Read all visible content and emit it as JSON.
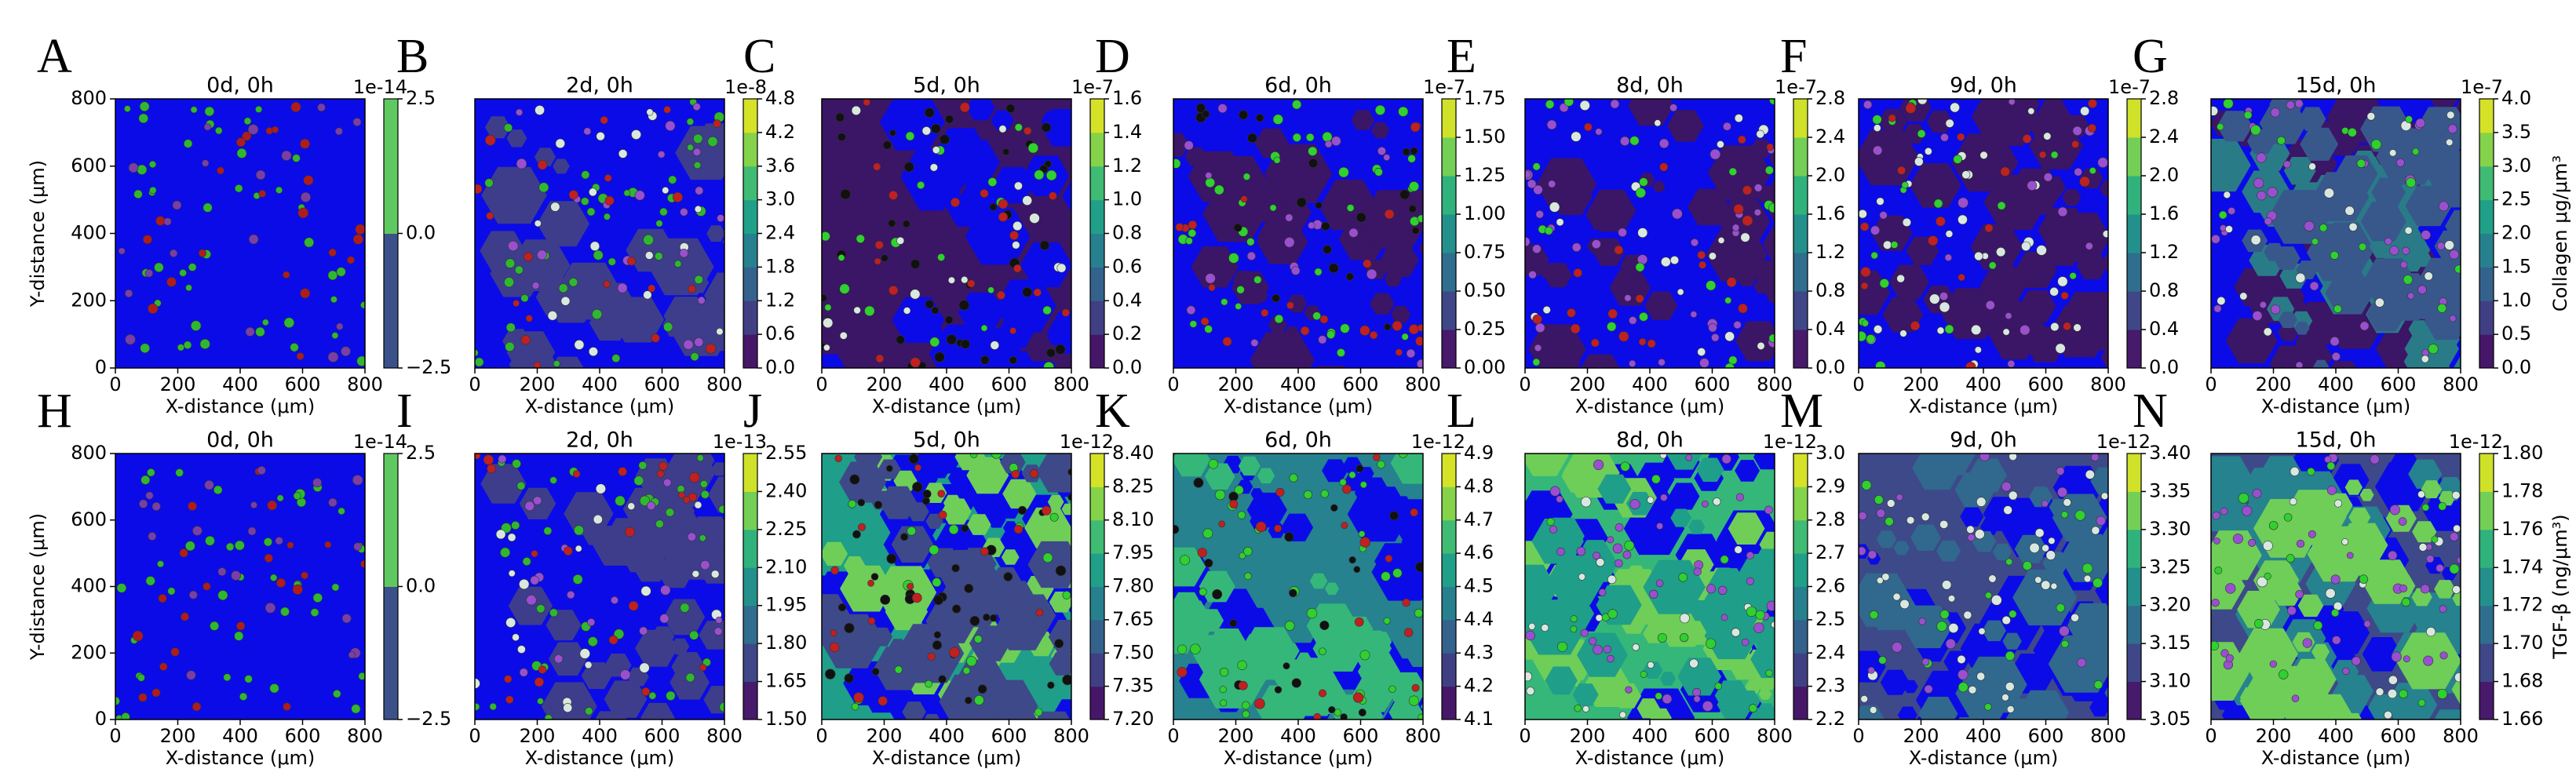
{
  "chart_data": [
    {
      "type": "heatmap",
      "panel_label": "A",
      "title": "0d, 0h",
      "xlabel": "X-distance (μm)",
      "ylabel": "Y-distance (μm)",
      "xlim": [
        0,
        800
      ],
      "xticks": [
        0,
        200,
        400,
        600,
        800
      ],
      "ylim": [
        0,
        800
      ],
      "yticks": [
        0,
        200,
        400,
        600,
        800
      ],
      "colormap": "viridis",
      "colorbar": {
        "offset": "1e-14",
        "clim": [
          -2.5,
          2.5
        ],
        "ticks": [
          {
            "value": -2.5,
            "label": "−2.5"
          },
          {
            "value": 0,
            "label": "0.0"
          },
          2.5
        ]
      },
      "field": {
        "background": "#0b0be8",
        "patches": [],
        "dots": [
          "#2fb82f",
          "#b01c1c",
          "#7a3fa6"
        ]
      }
    },
    {
      "type": "heatmap",
      "panel_label": "B",
      "title": "2d, 0h",
      "xlabel": "X-distance (μm)",
      "xlim": [
        0,
        800
      ],
      "xticks": [
        0,
        200,
        400,
        600,
        800
      ],
      "ylim": [
        0,
        800
      ],
      "colormap": "viridis",
      "colorbar": {
        "offset": "1e-8",
        "clim": [
          0,
          4.8
        ],
        "ticks": [
          {
            "value": 0,
            "label": "0.0"
          },
          0.6,
          1.2,
          1.8,
          2.4,
          {
            "value": 3,
            "label": "3.0"
          },
          3.6,
          4.2,
          4.8
        ]
      },
      "field": {
        "background": "#0b0be8",
        "patches": [
          "#3d3d8c"
        ],
        "dots": [
          "#2fb82f",
          "#d8e8e0",
          "#9a4fd0",
          "#c02020"
        ]
      }
    },
    {
      "type": "heatmap",
      "panel_label": "C",
      "title": "5d, 0h",
      "xlabel": "X-distance (μm)",
      "xlim": [
        0,
        800
      ],
      "xticks": [
        0,
        200,
        400,
        600,
        800
      ],
      "ylim": [
        0,
        800
      ],
      "colormap": "viridis",
      "colorbar": {
        "offset": "1e-7",
        "clim": [
          0,
          1.6
        ],
        "ticks": [
          {
            "value": 0,
            "label": "0.0"
          },
          0.2,
          0.4,
          0.6,
          0.8,
          {
            "value": 1,
            "label": "1.0"
          },
          1.2,
          1.4,
          1.6
        ]
      },
      "field": {
        "background": "#3b1566",
        "patches": [
          "#0b0be8"
        ],
        "dots": [
          "#111111",
          "#2fd02f",
          "#c02020",
          "#d8e8e0"
        ]
      }
    },
    {
      "type": "heatmap",
      "panel_label": "D",
      "title": "6d, 0h",
      "xlabel": "X-distance (μm)",
      "xlim": [
        0,
        800
      ],
      "xticks": [
        0,
        200,
        400,
        600,
        800
      ],
      "ylim": [
        0,
        800
      ],
      "colormap": "viridis",
      "colorbar": {
        "offset": "1e-7",
        "clim": [
          0,
          1.75
        ],
        "ticks": [
          {
            "value": 0,
            "label": "0.00"
          },
          0.25,
          {
            "value": 0.5,
            "label": "0.50"
          },
          0.75,
          {
            "value": 1,
            "label": "1.00"
          },
          1.25,
          {
            "value": 1.5,
            "label": "1.50"
          },
          1.75
        ]
      },
      "field": {
        "background": "#0b0be8",
        "patches": [
          "#3b1566"
        ],
        "dots": [
          "#2fd02f",
          "#9a4fd0",
          "#c02020",
          "#111111"
        ]
      }
    },
    {
      "type": "heatmap",
      "panel_label": "E",
      "title": "8d, 0h",
      "xlabel": "X-distance (μm)",
      "xlim": [
        0,
        800
      ],
      "xticks": [
        0,
        200,
        400,
        600,
        800
      ],
      "ylim": [
        0,
        800
      ],
      "colormap": "viridis",
      "colorbar": {
        "offset": "1e-7",
        "clim": [
          0,
          2.8
        ],
        "ticks": [
          {
            "value": 0,
            "label": "0.0"
          },
          0.4,
          0.8,
          1.2,
          1.6,
          {
            "value": 2,
            "label": "2.0"
          },
          2.4,
          2.8
        ]
      },
      "field": {
        "background": "#0b0be8",
        "patches": [
          "#3b1566"
        ],
        "dots": [
          "#9a4fd0",
          "#d8e8e0",
          "#2fd02f",
          "#c02020"
        ]
      }
    },
    {
      "type": "heatmap",
      "panel_label": "F",
      "title": "9d, 0h",
      "xlabel": "X-distance (μm)",
      "xlim": [
        0,
        800
      ],
      "xticks": [
        0,
        200,
        400,
        600,
        800
      ],
      "ylim": [
        0,
        800
      ],
      "colormap": "viridis",
      "colorbar": {
        "offset": "1e-7",
        "clim": [
          0,
          2.8
        ],
        "ticks": [
          {
            "value": 0,
            "label": "0.0"
          },
          0.4,
          0.8,
          1.2,
          1.6,
          {
            "value": 2,
            "label": "2.0"
          },
          2.4,
          2.8
        ]
      },
      "field": {
        "background": "#0b0be8",
        "patches": [
          "#3b1566"
        ],
        "dots": [
          "#d8e8e0",
          "#2fd02f",
          "#9a4fd0",
          "#c02020"
        ]
      }
    },
    {
      "type": "heatmap",
      "panel_label": "G",
      "title": "15d, 0h",
      "xlabel": "X-distance (μm)",
      "xlim": [
        0,
        800
      ],
      "xticks": [
        0,
        200,
        400,
        600,
        800
      ],
      "ylim": [
        0,
        800
      ],
      "colormap": "viridis",
      "colorbar": {
        "offset": "1e-7",
        "label": "Collagen μg/μm³",
        "clim": [
          0,
          4
        ],
        "ticks": [
          {
            "value": 0,
            "label": "0.0"
          },
          0.5,
          {
            "value": 1,
            "label": "1.0"
          },
          1.5,
          {
            "value": 2,
            "label": "2.0"
          },
          2.5,
          {
            "value": 3,
            "label": "3.0"
          },
          3.5,
          {
            "value": 4,
            "label": "4.0"
          }
        ]
      },
      "field": {
        "background": "#0b0be8",
        "patches": [
          "#3b1566",
          "#2a7b88",
          "#38588c"
        ],
        "dots": [
          "#9a4fd0",
          "#d8e8e0",
          "#2fd02f"
        ]
      }
    },
    {
      "type": "heatmap",
      "panel_label": "H",
      "title": "0d, 0h",
      "xlabel": "X-distance (μm)",
      "ylabel": "Y-distance (μm)",
      "xlim": [
        0,
        800
      ],
      "xticks": [
        0,
        200,
        400,
        600,
        800
      ],
      "ylim": [
        0,
        800
      ],
      "yticks": [
        0,
        200,
        400,
        600,
        800
      ],
      "colormap": "viridis",
      "colorbar": {
        "offset": "1e-14",
        "clim": [
          -2.5,
          2.5
        ],
        "ticks": [
          {
            "value": -2.5,
            "label": "−2.5"
          },
          {
            "value": 0,
            "label": "0.0"
          },
          2.5
        ]
      },
      "field": {
        "background": "#0b0be8",
        "patches": [],
        "dots": [
          "#2fb82f",
          "#b01c1c",
          "#7a3fa6"
        ]
      }
    },
    {
      "type": "heatmap",
      "panel_label": "I",
      "title": "2d, 0h",
      "xlabel": "X-distance (μm)",
      "xlim": [
        0,
        800
      ],
      "xticks": [
        0,
        200,
        400,
        600,
        800
      ],
      "ylim": [
        0,
        800
      ],
      "colormap": "viridis",
      "colorbar": {
        "offset": "1e-13",
        "clim": [
          1.5,
          2.55
        ],
        "ticks": [
          {
            "value": 1.5,
            "label": "1.50"
          },
          1.65,
          {
            "value": 1.8,
            "label": "1.80"
          },
          1.95,
          {
            "value": 2.1,
            "label": "2.10"
          },
          2.25,
          {
            "value": 2.4,
            "label": "2.40"
          },
          2.55
        ]
      },
      "field": {
        "background": "#0b0be8",
        "patches": [
          "#3d3d8c"
        ],
        "dots": [
          "#2fb82f",
          "#d8e8e0",
          "#9a4fd0",
          "#c02020"
        ]
      }
    },
    {
      "type": "heatmap",
      "panel_label": "J",
      "title": "5d, 0h",
      "xlabel": "X-distance (μm)",
      "xlim": [
        0,
        800
      ],
      "xticks": [
        0,
        200,
        400,
        600,
        800
      ],
      "ylim": [
        0,
        800
      ],
      "colormap": "viridis",
      "colorbar": {
        "offset": "1e-12",
        "clim": [
          7.2,
          8.4
        ],
        "ticks": [
          {
            "value": 7.2,
            "label": "7.20"
          },
          7.35,
          {
            "value": 7.5,
            "label": "7.50"
          },
          7.65,
          {
            "value": 7.8,
            "label": "7.80"
          },
          7.95,
          {
            "value": 8.1,
            "label": "8.10"
          },
          8.25,
          {
            "value": 8.4,
            "label": "8.40"
          }
        ]
      },
      "field": {
        "background": "#1f9e89",
        "patches": [
          "#0b0be8",
          "#6ece58",
          "#3e4989"
        ],
        "dots": [
          "#111111",
          "#2fd02f",
          "#c02020"
        ]
      }
    },
    {
      "type": "heatmap",
      "panel_label": "K",
      "title": "6d, 0h",
      "xlabel": "X-distance (μm)",
      "xlim": [
        0,
        800
      ],
      "xticks": [
        0,
        200,
        400,
        600,
        800
      ],
      "ylim": [
        0,
        800
      ],
      "colormap": "viridis",
      "colorbar": {
        "offset": "1e-12",
        "clim": [
          4.1,
          4.9
        ],
        "ticks": [
          4.1,
          4.2,
          4.3,
          4.4,
          4.5,
          4.6,
          4.7,
          4.8,
          4.9
        ]
      },
      "field": {
        "background": "#26828e",
        "patches": [
          "#0b0be8",
          "#35b779"
        ],
        "dots": [
          "#2fd02f",
          "#111111",
          "#c02020"
        ]
      }
    },
    {
      "type": "heatmap",
      "panel_label": "L",
      "title": "8d, 0h",
      "xlabel": "X-distance (μm)",
      "xlim": [
        0,
        800
      ],
      "xticks": [
        0,
        200,
        400,
        600,
        800
      ],
      "ylim": [
        0,
        800
      ],
      "colormap": "viridis",
      "colorbar": {
        "offset": "1e-12",
        "clim": [
          2.2,
          3
        ],
        "ticks": [
          2.2,
          2.3,
          2.4,
          2.5,
          2.6,
          2.7,
          2.8,
          2.9,
          {
            "value": 3,
            "label": "3.0"
          }
        ]
      },
      "field": {
        "background": "#35b779",
        "patches": [
          "#0b0be8",
          "#6ece58",
          "#1f9e89"
        ],
        "dots": [
          "#9a4fd0",
          "#d8e8e0",
          "#2fd02f"
        ]
      }
    },
    {
      "type": "heatmap",
      "panel_label": "M",
      "title": "9d, 0h",
      "xlabel": "X-distance (μm)",
      "xlim": [
        0,
        800
      ],
      "xticks": [
        0,
        200,
        400,
        600,
        800
      ],
      "ylim": [
        0,
        800
      ],
      "colormap": "viridis",
      "colorbar": {
        "offset": "1e-12",
        "clim": [
          3.05,
          3.4
        ],
        "ticks": [
          3.05,
          {
            "value": 3.1,
            "label": "3.10"
          },
          3.15,
          {
            "value": 3.2,
            "label": "3.20"
          },
          3.25,
          {
            "value": 3.3,
            "label": "3.30"
          },
          3.35,
          {
            "value": 3.4,
            "label": "3.40"
          }
        ]
      },
      "field": {
        "background": "#3e4989",
        "patches": [
          "#0b0be8",
          "#31688e"
        ],
        "dots": [
          "#d8e8e0",
          "#2fd02f",
          "#9a4fd0"
        ]
      }
    },
    {
      "type": "heatmap",
      "panel_label": "N",
      "title": "15d, 0h",
      "xlabel": "X-distance (μm)",
      "xlim": [
        0,
        800
      ],
      "xticks": [
        0,
        200,
        400,
        600,
        800
      ],
      "ylim": [
        0,
        800
      ],
      "colormap": "viridis",
      "colorbar": {
        "offset": "1e-12",
        "label": "TGF-β (ng/μm³)",
        "clim": [
          1.66,
          1.8
        ],
        "ticks": [
          1.66,
          1.68,
          {
            "value": 1.7,
            "label": "1.70"
          },
          1.72,
          1.74,
          1.76,
          1.78,
          {
            "value": 1.8,
            "label": "1.80"
          }
        ]
      },
      "field": {
        "background": "#3e4989",
        "patches": [
          "#0b0be8",
          "#26828e",
          "#6ece58"
        ],
        "dots": [
          "#9a4fd0",
          "#d8e8e0",
          "#2fd02f"
        ]
      }
    }
  ]
}
